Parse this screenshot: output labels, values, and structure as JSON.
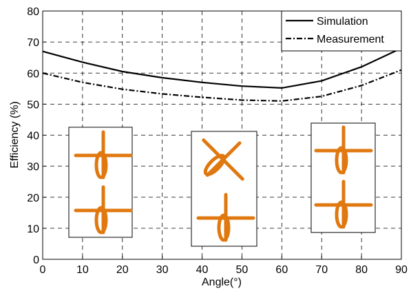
{
  "chart_data": {
    "type": "line",
    "x": [
      0,
      10,
      20,
      30,
      40,
      50,
      60,
      70,
      80,
      90
    ],
    "series": [
      {
        "name": "Simulation",
        "color": "#000000",
        "linestyle": "solid",
        "values": [
          67,
          63.5,
          60.5,
          58.5,
          57,
          55.8,
          55.2,
          57.5,
          62,
          68
        ]
      },
      {
        "name": "Measurement",
        "color": "#000000",
        "linestyle": "dashdot",
        "values": [
          60,
          57,
          54.8,
          53.3,
          52.2,
          51.3,
          51,
          52.5,
          56,
          61
        ]
      }
    ],
    "xlabel": "Angle(°)",
    "ylabel": "Efficiency (%)",
    "xlim": [
      0,
      90
    ],
    "xticks": [
      0,
      10,
      20,
      30,
      40,
      50,
      60,
      70,
      80,
      90
    ],
    "ylim": [
      0,
      80
    ],
    "yticks": [
      0,
      10,
      20,
      30,
      40,
      50,
      60,
      70,
      80
    ],
    "grid": true,
    "legend": "upper right"
  }
}
